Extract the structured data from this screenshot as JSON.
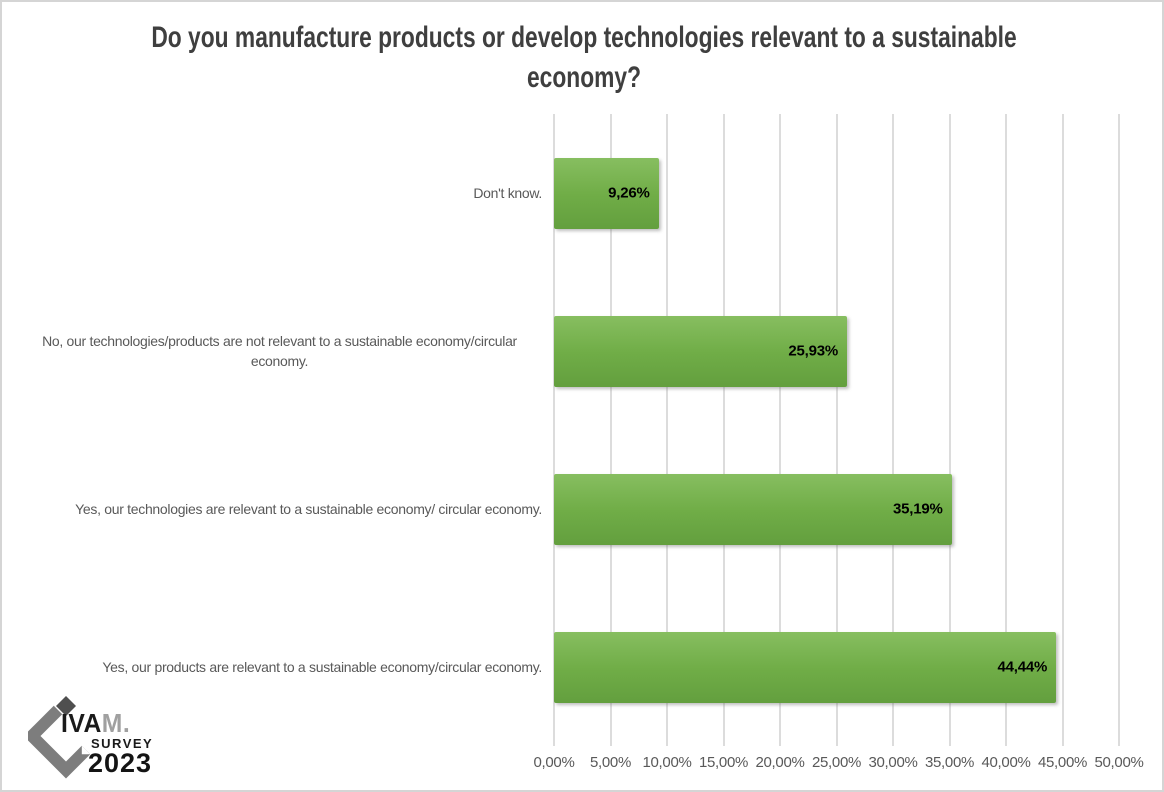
{
  "chart_data": {
    "type": "bar",
    "orientation": "horizontal",
    "title": "Do you manufacture products or develop technologies relevant to a sustainable economy?",
    "categories": [
      "Don't know.",
      "No, our technologies/products are not relevant to a sustainable economy/circular economy.",
      "Yes, our technologies are relevant to a sustainable economy/ circular economy.",
      "Yes, our products are relevant to a sustainable economy/circular economy."
    ],
    "values": [
      9.26,
      25.93,
      35.19,
      44.44
    ],
    "value_labels": [
      "9,26%",
      "25,93%",
      "35,19%",
      "44,44%"
    ],
    "x_ticks": [
      "0,00%",
      "5,00%",
      "10,00%",
      "15,00%",
      "20,00%",
      "25,00%",
      "30,00%",
      "35,00%",
      "40,00%",
      "45,00%",
      "50,00%"
    ],
    "xlim": [
      0,
      50
    ],
    "grid": "vertical-only",
    "legend": "none",
    "colors": {
      "bar": "#70ad47",
      "bar_gradient_top": "#87be60",
      "bar_gradient_mid": "#70ad47",
      "bar_gradient_bottom": "#639f3e",
      "value_label": "#000000",
      "category_label": "#595959",
      "tick_label": "#595959",
      "gridline": "#dcdcdc",
      "title": "#3f3f3f"
    }
  },
  "logo": {
    "brand_dark": "IVA",
    "brand_light": "M.",
    "survey": "SURVEY",
    "year": "2023"
  }
}
